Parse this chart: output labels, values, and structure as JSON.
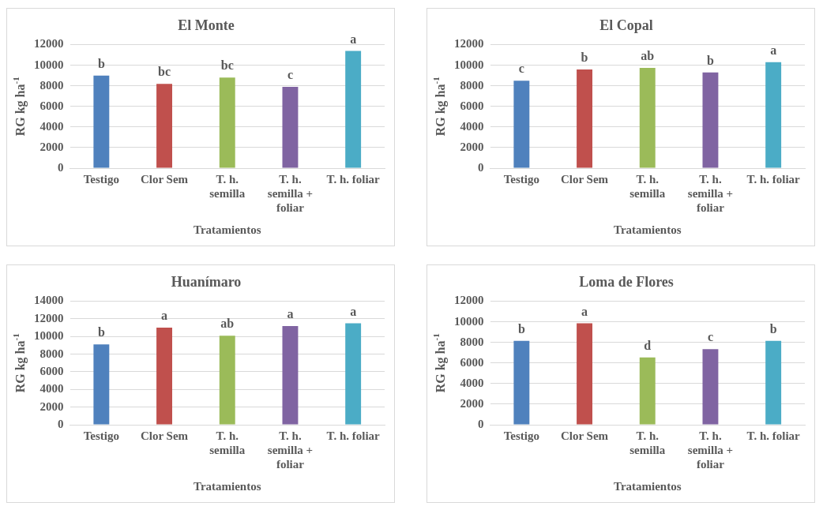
{
  "chart_data": [
    {
      "type": "bar",
      "title": "El Monte",
      "xlabel": "Tratamientos",
      "ylabel": "RG kg ha$^{-1}$",
      "categories": [
        "Testigo",
        "Clor Sem",
        "T. h. semilla",
        "T. h. semilla + foliar",
        "T. h. foliar"
      ],
      "values": [
        9000,
        8200,
        8800,
        7900,
        11400
      ],
      "colors": [
        "#4f81bd",
        "#c0504d",
        "#9bbb59",
        "#8064a2",
        "#4bacc6"
      ],
      "ylim": [
        0,
        12000
      ],
      "yticks": [
        0,
        2000,
        4000,
        6000,
        8000,
        10000,
        12000
      ],
      "grid": "y",
      "legend": false,
      "annotations": [
        {
          "text": "b",
          "x": "Testigo",
          "y": 9000
        },
        {
          "text": "bc",
          "x": "Clor Sem",
          "y": 8200
        },
        {
          "text": "bc",
          "x": "T. h. semilla",
          "y": 8800
        },
        {
          "text": "c",
          "x": "T. h. semilla + foliar",
          "y": 7900
        },
        {
          "text": "a",
          "x": "T. h. foliar",
          "y": 11400
        }
      ]
    },
    {
      "type": "bar",
      "title": "El Copal",
      "xlabel": "Tratamientos",
      "ylabel": "RG kg ha$^{-1}$",
      "categories": [
        "Testigo",
        "Clor Sem",
        "T. h. semilla",
        "T. h. semilla + foliar",
        "T. h. foliar"
      ],
      "values": [
        8500,
        9600,
        9750,
        9300,
        10300
      ],
      "colors": [
        "#4f81bd",
        "#c0504d",
        "#9bbb59",
        "#8064a2",
        "#4bacc6"
      ],
      "ylim": [
        0,
        12000
      ],
      "yticks": [
        0,
        2000,
        4000,
        6000,
        8000,
        10000,
        12000
      ],
      "grid": "y",
      "legend": false,
      "annotations": [
        {
          "text": "c",
          "x": "Testigo",
          "y": 8500
        },
        {
          "text": "b",
          "x": "Clor Sem",
          "y": 9600
        },
        {
          "text": "ab",
          "x": "T. h. semilla",
          "y": 9750
        },
        {
          "text": "b",
          "x": "T. h. semilla + foliar",
          "y": 9300
        },
        {
          "text": "a",
          "x": "T. h. foliar",
          "y": 10300
        }
      ]
    },
    {
      "type": "bar",
      "title": "Huanímaro",
      "xlabel": "Tratamientos",
      "ylabel": "RG kg ha$^{-1}$",
      "categories": [
        "Testigo",
        "Clor Sem",
        "T. h. semilla",
        "T. h. semilla + foliar",
        "T. h. foliar"
      ],
      "values": [
        9100,
        11000,
        10100,
        11200,
        11500
      ],
      "colors": [
        "#4f81bd",
        "#c0504d",
        "#9bbb59",
        "#8064a2",
        "#4bacc6"
      ],
      "ylim": [
        0,
        14000
      ],
      "yticks": [
        0,
        2000,
        4000,
        6000,
        8000,
        10000,
        12000,
        14000
      ],
      "grid": "y",
      "legend": false,
      "annotations": [
        {
          "text": "b",
          "x": "Testigo",
          "y": 9100
        },
        {
          "text": "a",
          "x": "Clor Sem",
          "y": 11000
        },
        {
          "text": "ab",
          "x": "T. h. semilla",
          "y": 10100
        },
        {
          "text": "a",
          "x": "T. h. semilla + foliar",
          "y": 11200
        },
        {
          "text": "a",
          "x": "T. h. foliar",
          "y": 11500
        }
      ]
    },
    {
      "type": "bar",
      "title": "Loma de Flores",
      "xlabel": "Tratamientos",
      "ylabel": "RG kg ha$^{-1}$",
      "categories": [
        "Testigo",
        "Clor Sem",
        "T. h. semilla",
        "T. h. semilla + foliar",
        "T. h. foliar"
      ],
      "values": [
        8150,
        9850,
        6550,
        7350,
        8150
      ],
      "colors": [
        "#4f81bd",
        "#c0504d",
        "#9bbb59",
        "#8064a2",
        "#4bacc6"
      ],
      "ylim": [
        0,
        12000
      ],
      "yticks": [
        0,
        2000,
        4000,
        6000,
        8000,
        10000,
        12000
      ],
      "grid": "y",
      "legend": false,
      "annotations": [
        {
          "text": "b",
          "x": "Testigo",
          "y": 8150
        },
        {
          "text": "a",
          "x": "Clor Sem",
          "y": 9850
        },
        {
          "text": "d",
          "x": "T. h. semilla",
          "y": 6550
        },
        {
          "text": "c",
          "x": "T. h. semilla + foliar",
          "y": 7350
        },
        {
          "text": "b",
          "x": "T. h. foliar",
          "y": 8150
        }
      ]
    }
  ]
}
